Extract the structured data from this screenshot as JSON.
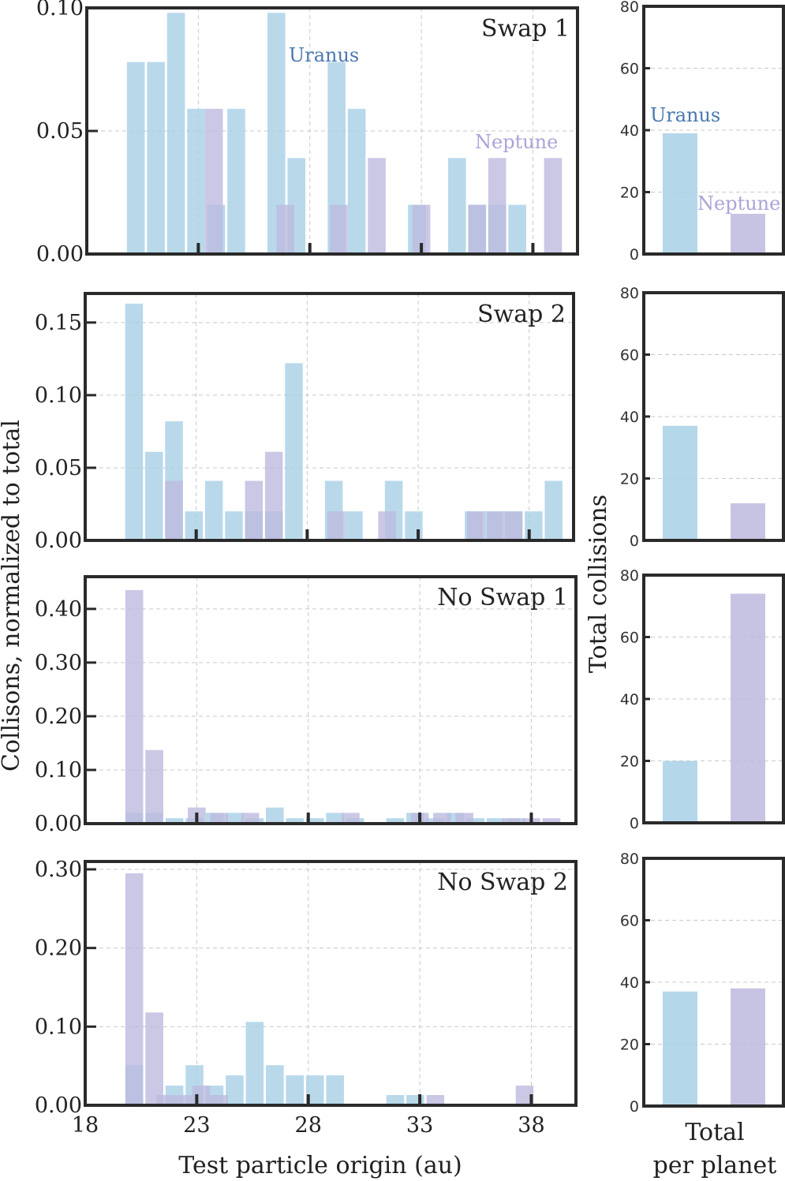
{
  "colors": {
    "uranus": "#a8d0e6",
    "neptune": "#bdbade",
    "uranus_label": "#4a78b0",
    "neptune_label": "#a9a4d8"
  },
  "chart_data": [
    {
      "type": "bar",
      "title": "Swap 1",
      "xlim": [
        18,
        40
      ],
      "ylim": [
        0,
        0.1
      ],
      "yticks": [
        0.0,
        0.05,
        0.1
      ],
      "ytick_labels": [
        "0.00",
        "0.05",
        "0.10"
      ],
      "xticks": [
        23,
        28,
        33,
        38
      ],
      "xtick_labels": [],
      "bin_width": 0.8,
      "annotations": [
        {
          "text": "Uranus",
          "color_key": "uranus_label",
          "x": 28.7,
          "y": 0.08
        },
        {
          "text": "Neptune",
          "color_key": "neptune_label",
          "x": 37.8,
          "y": 0.044
        }
      ],
      "series": [
        {
          "name": "Uranus",
          "color_key": "uranus",
          "x": [
            20.2,
            21.1,
            22.0,
            22.9,
            23.8,
            24.7,
            26.5,
            27.4,
            29.2,
            30.1,
            32.8,
            34.6,
            35.5,
            36.4,
            37.3
          ],
          "values": [
            0.078,
            0.078,
            0.098,
            0.059,
            0.02,
            0.059,
            0.098,
            0.039,
            0.078,
            0.059,
            0.02,
            0.039,
            0.02,
            0.02,
            0.02
          ]
        },
        {
          "name": "Neptune",
          "color_key": "neptune",
          "x": [
            23.7,
            26.9,
            29.3,
            31.0,
            33.0,
            35.5,
            36.4,
            38.9
          ],
          "values": [
            0.059,
            0.02,
            0.02,
            0.039,
            0.02,
            0.02,
            0.039,
            0.039
          ]
        }
      ]
    },
    {
      "type": "bar",
      "title": "Swap 2",
      "xlim": [
        18,
        40
      ],
      "ylim": [
        0,
        0.17
      ],
      "yticks": [
        0.0,
        0.05,
        0.1,
        0.15
      ],
      "ytick_labels": [
        "0.00",
        "0.05",
        "0.10",
        "0.15"
      ],
      "xticks": [
        23,
        28,
        33,
        38
      ],
      "xtick_labels": [],
      "bin_width": 0.8,
      "annotations": [],
      "series": [
        {
          "name": "Uranus",
          "color_key": "uranus",
          "x": [
            20.2,
            21.1,
            22.0,
            22.9,
            23.8,
            24.7,
            25.6,
            26.5,
            27.4,
            29.2,
            30.1,
            31.9,
            32.8,
            35.5,
            36.4,
            37.3,
            38.2,
            39.1
          ],
          "values": [
            0.163,
            0.061,
            0.082,
            0.02,
            0.041,
            0.02,
            0.02,
            0.02,
            0.122,
            0.041,
            0.02,
            0.041,
            0.02,
            0.02,
            0.02,
            0.02,
            0.02,
            0.041
          ]
        },
        {
          "name": "Neptune",
          "color_key": "neptune",
          "x": [
            22.0,
            25.6,
            26.5,
            29.3,
            31.6,
            35.6,
            36.5,
            37.3
          ],
          "values": [
            0.041,
            0.041,
            0.061,
            0.02,
            0.02,
            0.02,
            0.02,
            0.02
          ]
        }
      ]
    },
    {
      "type": "bar",
      "title": "No Swap 1",
      "xlim": [
        18,
        40
      ],
      "ylim": [
        0,
        0.46
      ],
      "yticks": [
        0.0,
        0.1,
        0.2,
        0.3,
        0.4
      ],
      "ytick_labels": [
        "0.00",
        "0.10",
        "0.20",
        "0.30",
        "0.40"
      ],
      "xticks": [
        23,
        28,
        33,
        38
      ],
      "xtick_labels": [],
      "bin_width": 0.8,
      "annotations": [],
      "series": [
        {
          "name": "Uranus",
          "color_key": "uranus",
          "x": [
            20.2,
            21.1,
            22.0,
            22.9,
            23.8,
            24.7,
            25.6,
            26.5,
            27.4,
            28.3,
            29.2,
            30.1,
            31.9,
            32.8,
            33.7,
            34.6,
            35.5,
            36.4,
            37.3
          ],
          "values": [
            0.02,
            0.02,
            0.01,
            0.01,
            0.02,
            0.02,
            0.01,
            0.03,
            0.01,
            0.01,
            0.02,
            0.01,
            0.01,
            0.02,
            0.01,
            0.02,
            0.01,
            0.01,
            0.01
          ]
        },
        {
          "name": "Neptune",
          "color_key": "neptune",
          "x": [
            20.2,
            21.1,
            23.0,
            24.0,
            25.4,
            29.9,
            33.0,
            34.0,
            35.0,
            37.1,
            38.0,
            38.9
          ],
          "values": [
            0.435,
            0.137,
            0.03,
            0.02,
            0.02,
            0.02,
            0.02,
            0.02,
            0.02,
            0.01,
            0.01,
            0.01
          ]
        }
      ]
    },
    {
      "type": "bar",
      "title": "No Swap 2",
      "xlim": [
        18,
        40
      ],
      "ylim": [
        0,
        0.31
      ],
      "yticks": [
        0.0,
        0.1,
        0.2,
        0.3
      ],
      "ytick_labels": [
        "0.00",
        "0.10",
        "0.20",
        "0.30"
      ],
      "xticks": [
        23,
        28,
        33,
        38
      ],
      "xtick_labels": [
        "18",
        "23",
        "28",
        "33",
        "38"
      ],
      "xtick_label_values": [
        18,
        23,
        28,
        33,
        38
      ],
      "bin_width": 0.8,
      "annotations": [],
      "series": [
        {
          "name": "Uranus",
          "color_key": "uranus",
          "x": [
            20.2,
            22.0,
            22.9,
            23.8,
            24.7,
            25.6,
            26.5,
            27.4,
            28.3,
            29.2,
            31.9,
            32.8
          ],
          "values": [
            0.051,
            0.025,
            0.051,
            0.025,
            0.038,
            0.106,
            0.051,
            0.038,
            0.038,
            0.038,
            0.013,
            0.013
          ]
        },
        {
          "name": "Neptune",
          "color_key": "neptune",
          "x": [
            20.2,
            21.1,
            21.6,
            22.4,
            23.2,
            24.0,
            33.7,
            37.7
          ],
          "values": [
            0.295,
            0.118,
            0.013,
            0.013,
            0.025,
            0.013,
            0.013,
            0.025
          ]
        }
      ]
    }
  ],
  "totals_data": [
    {
      "type": "bar",
      "categories": [
        "Uranus",
        "Neptune"
      ],
      "values": [
        39,
        13
      ],
      "ylim": [
        0,
        80
      ],
      "yticks": [
        0,
        20,
        40,
        60,
        80
      ],
      "annotations": [
        {
          "text": "Uranus",
          "color_key": "uranus_label"
        },
        {
          "text": "Neptune",
          "color_key": "neptune_label"
        }
      ]
    },
    {
      "type": "bar",
      "categories": [
        "Uranus",
        "Neptune"
      ],
      "values": [
        37,
        12
      ],
      "ylim": [
        0,
        80
      ],
      "yticks": [
        0,
        20,
        40,
        60,
        80
      ],
      "annotations": []
    },
    {
      "type": "bar",
      "categories": [
        "Uranus",
        "Neptune"
      ],
      "values": [
        20,
        74
      ],
      "ylim": [
        0,
        80
      ],
      "yticks": [
        0,
        20,
        40,
        60,
        80
      ],
      "annotations": []
    },
    {
      "type": "bar",
      "categories": [
        "Uranus",
        "Neptune"
      ],
      "values": [
        37,
        38
      ],
      "ylim": [
        0,
        80
      ],
      "yticks": [
        0,
        20,
        40,
        60,
        80
      ],
      "annotations": []
    }
  ],
  "labels": {
    "xlabel": "Test particle origin (au)",
    "ylabel": "Collisons, normalized to total",
    "right_ylabel": "Total collisions",
    "right_xlabel_line1": "Total",
    "right_xlabel_line2": "per planet"
  }
}
